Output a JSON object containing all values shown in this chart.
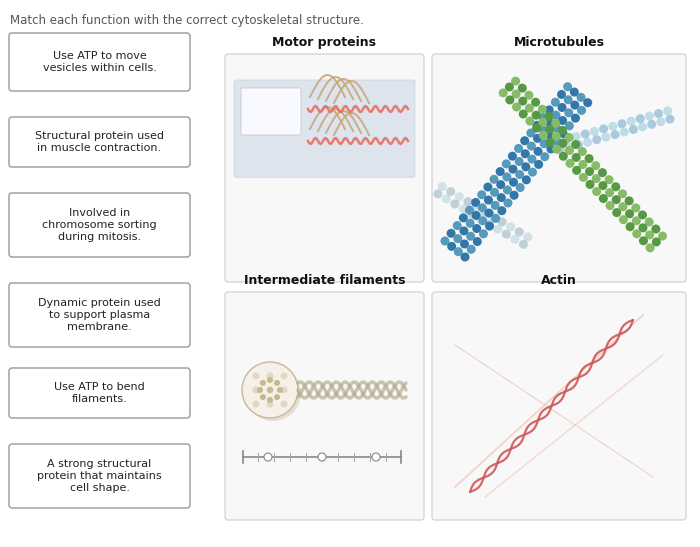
{
  "title": "Match each function with the correct cytoskeletal structure.",
  "left_boxes": [
    "Use ATP to move\nvesicles within cells.",
    "Structural protein used\nin muscle contraction.",
    "Involved in\nchromosome sorting\nduring mitosis.",
    "Dynamic protein used\nto support plasma\nmembrane.",
    "Use ATP to bend\nfilaments.",
    "A strong structural\nprotein that maintains\ncell shape."
  ],
  "image_titles": [
    "Motor proteins",
    "Microtubules",
    "Intermediate filaments",
    "Actin"
  ],
  "bg_color": "#ffffff",
  "box_bg": "#ffffff",
  "box_border": "#999999",
  "title_color": "#555555",
  "text_color": "#222222",
  "img_bg": "#f8f8f8",
  "img_border": "#cccccc"
}
